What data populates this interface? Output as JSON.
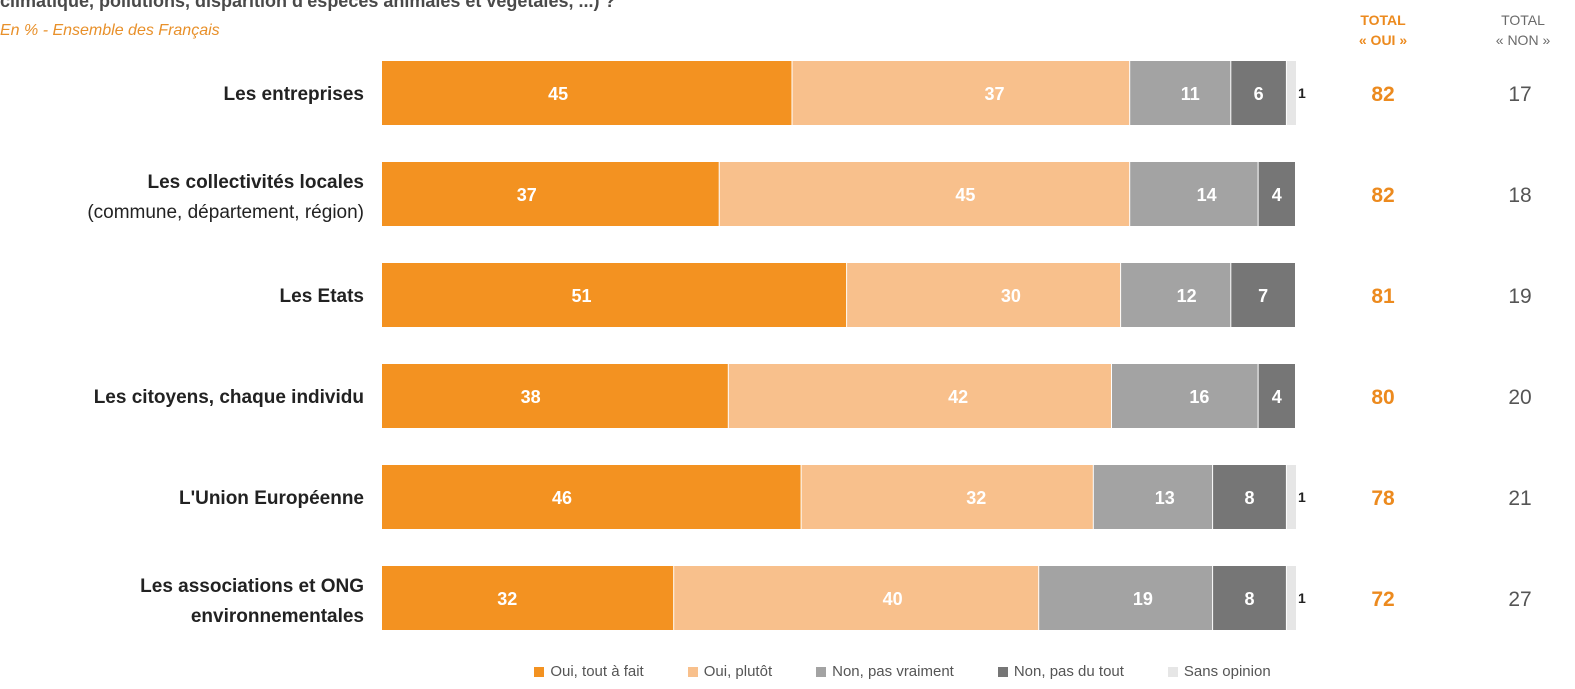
{
  "header": {
    "title_fragment": "climatique, pollutions, disparition d'espèces animales et végétales, ...) ?",
    "subtitle": "En % - Ensemble des Français",
    "total_oui": [
      "TOTAL",
      "« OUI »"
    ],
    "total_non": [
      "TOTAL",
      "« NON »"
    ]
  },
  "colors": {
    "oui_tout_a_fait": "#f39221",
    "oui_plutot": "#f8c08c",
    "non_pas_vraiment": "#a3a3a3",
    "non_pas_du_tout": "#767676",
    "sans_opinion": "#e6e6e6",
    "total_oui_text": "#ec8a1e",
    "total_non_text": "#555555"
  },
  "chart_data": {
    "type": "bar",
    "orientation": "horizontal",
    "stacked": true,
    "unit": "%",
    "categories": [
      [
        "Les entreprises"
      ],
      [
        "Les collectivités locales",
        "(commune, département, région)"
      ],
      [
        "Les Etats"
      ],
      [
        "Les citoyens, chaque individu"
      ],
      [
        "L'Union Européenne"
      ],
      [
        "Les associations et ONG",
        "environnementales"
      ]
    ],
    "series": [
      {
        "name": "Oui, tout à fait",
        "values": [
          45,
          37,
          51,
          38,
          46,
          32
        ]
      },
      {
        "name": "Oui, plutôt",
        "values": [
          37,
          45,
          30,
          42,
          32,
          40
        ]
      },
      {
        "name": "Non, pas vraiment",
        "values": [
          11,
          14,
          12,
          16,
          13,
          19
        ]
      },
      {
        "name": "Non, pas du tout",
        "values": [
          6,
          4,
          7,
          4,
          8,
          8
        ]
      },
      {
        "name": "Sans opinion",
        "values": [
          1,
          0,
          0,
          0,
          1,
          1
        ]
      }
    ],
    "totals": {
      "oui": [
        82,
        82,
        81,
        80,
        78,
        72
      ],
      "non": [
        17,
        18,
        19,
        20,
        21,
        27
      ]
    },
    "legend_position": "bottom",
    "grid": false
  }
}
